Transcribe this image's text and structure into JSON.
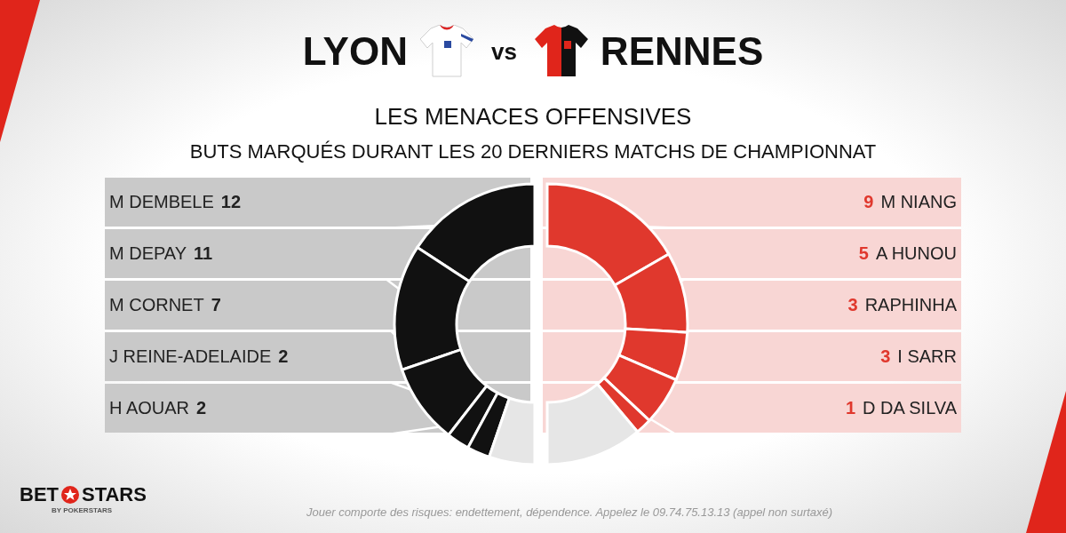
{
  "header": {
    "separator": "vs"
  },
  "title": "LES MENACES OFFENSIVES",
  "subtitle": "BUTS MARQUÉS DURANT LES 20 DERNIERS MATCHS DE CHAMPIONNAT",
  "chart_data": [
    {
      "type": "pie",
      "title": "LYON",
      "categories": [
        "M DEMBELE",
        "M DEPAY",
        "M CORNET",
        "J REINE-ADELAIDE",
        "H AOUAR",
        null
      ],
      "values": [
        12,
        11,
        7,
        2,
        2,
        4
      ],
      "colors": [
        "#111111",
        "#111111",
        "#111111",
        "#111111",
        "#111111",
        "#e6e6e6"
      ],
      "data_labels": true
    },
    {
      "type": "pie",
      "title": "RENNES",
      "categories": [
        "M NIANG",
        "A HUNOU",
        "RAPHINHA",
        "I SARR",
        "D DA SILVA",
        null
      ],
      "values": [
        9,
        5,
        3,
        3,
        1,
        6
      ],
      "colors": [
        "#e0382d",
        "#e0382d",
        "#e0382d",
        "#e0382d",
        "#e0382d",
        "#e6e6e6"
      ],
      "data_labels": true
    }
  ],
  "footer": {
    "logo": [
      "BET",
      "STARS"
    ],
    "logo_sub": "BY POKERSTARS",
    "disclaimer": "Jouer comporte des risques: endettement, dépendence. Appelez le 09.74.75.13.13 (appel non surtaxé)"
  }
}
